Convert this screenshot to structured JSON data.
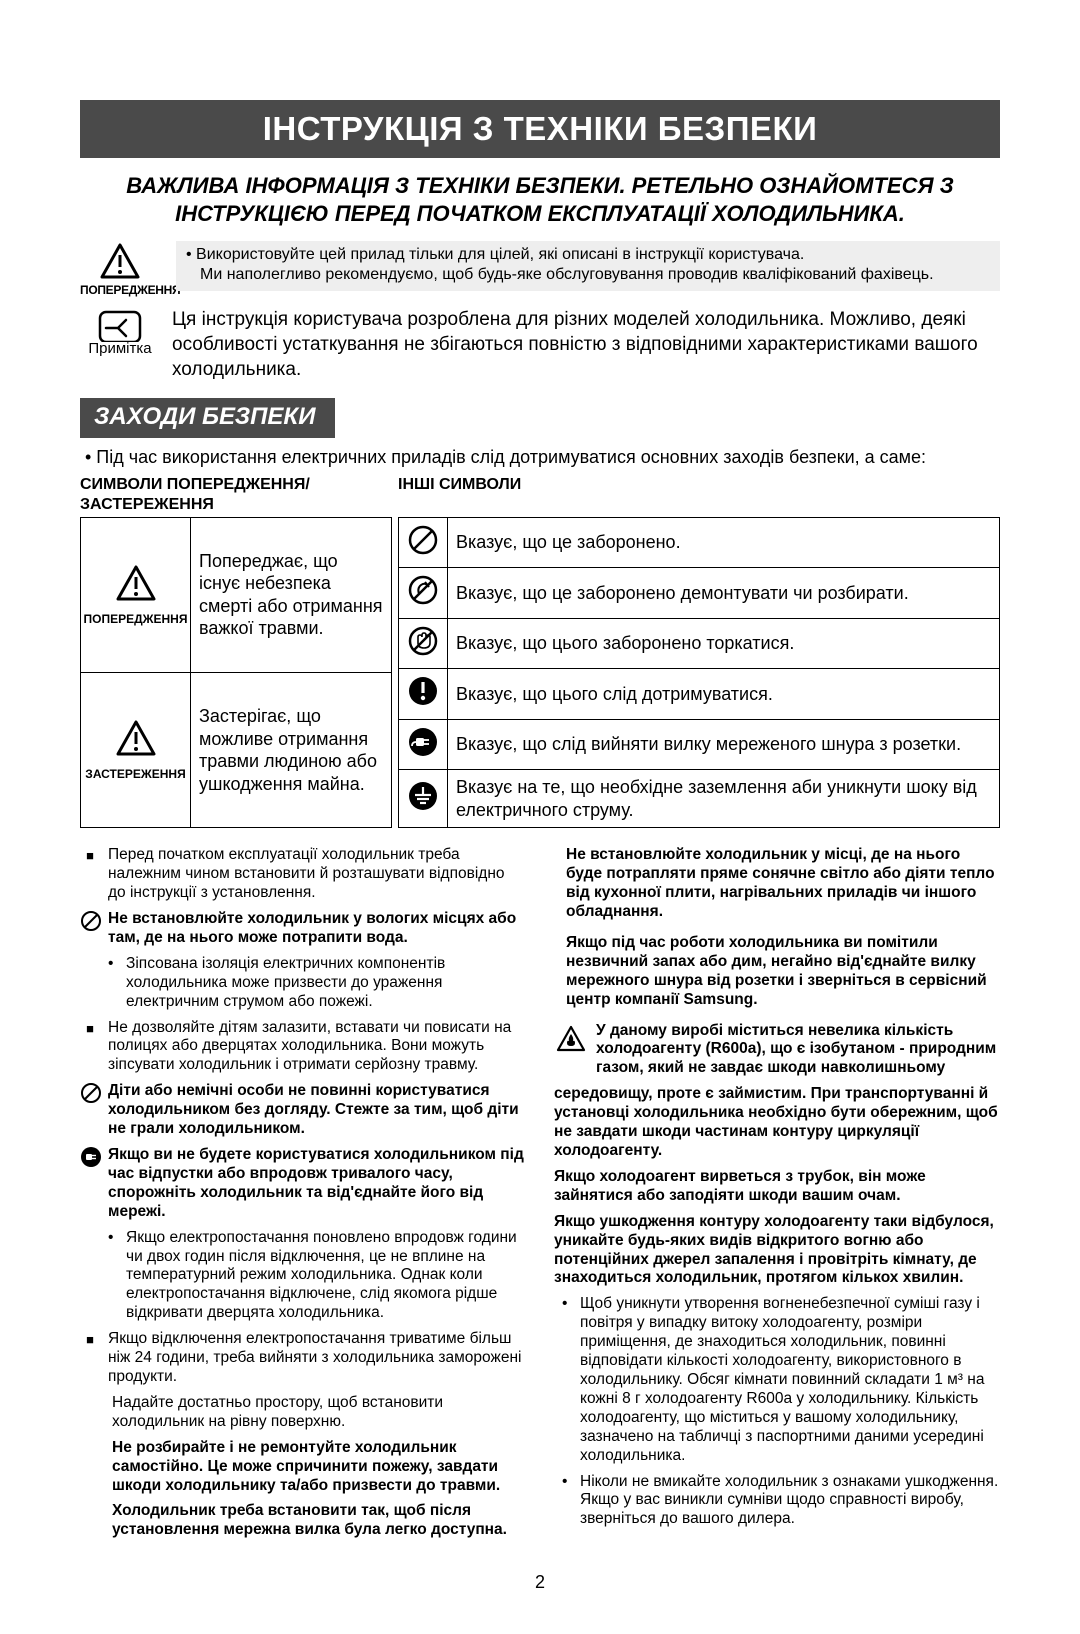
{
  "title": "ІНСТРУКЦІЯ З ТЕХНІКИ БЕЗПЕКИ",
  "subtitle": "ВАЖЛИВА ІНФОРМАЦІЯ З ТЕХНІКИ БЕЗПЕКИ. РЕТЕЛЬНО ОЗНАЙОМТЕСЯ З ІНСТРУКЦІЄЮ ПЕРЕД ПОЧАТКОМ ЕКСПЛУАТАЦІЇ ХОЛОДИЛЬНИКА.",
  "warn_label": "ПОПЕРЕДЖЕННЯ",
  "warn_line1": "• Використовуйте цей прилад тільки для цілей, які описані в інструкції користувача.",
  "warn_line2": "Ми наполегливо рекомендуємо, щоб будь-яке обслуговування проводив кваліфікований фахівець.",
  "note_label": "Примітка",
  "note_text": "Ця інструкція користувача розроблена для різних моделей холодильника. Можливо, деякі особливості устаткування не збігаються повністю з відповідними характеристиками вашого холодильника.",
  "section": "ЗАХОДИ БЕЗПЕКИ",
  "lead": "• Під час використання електричних приладів слід дотримуватися основних заходів безпеки, а саме:",
  "hdr_left": "СИМВОЛИ ПОПЕРЕДЖЕННЯ/ЗАСТЕРЕЖЕННЯ",
  "hdr_right": "ІНШІ СИМВОЛИ",
  "left_rows": [
    {
      "label": "ПОПЕРЕДЖЕННЯ",
      "text": "Попереджає, що існує небезпека смерті або отримання важкої травми."
    },
    {
      "label": "ЗАСТЕРЕЖЕННЯ",
      "text": "Застерігає, що можливе отримання травми людиною або ушкодження майна."
    }
  ],
  "right_rows": [
    "Вказує, що це заборонено.",
    "Вказує, що це заборонено демонтувати чи розбирати.",
    "Вказує, що цього заборонено торкатися.",
    "Вказує, що цього слід дотримуватися.",
    "Вказує, що слід вийняти вилку мереженого шнура з розетки.",
    "Вказує на те, що необхідне заземлення аби уникнути шоку від електричного струму."
  ],
  "col1": [
    {
      "mk": "sq",
      "bold": false,
      "text": "Перед початком експлуатації холодильник треба належним чином встановити й розташувати відповідно до інструкції з установлення."
    },
    {
      "mk": "circ",
      "bold": true,
      "text": "Не встановлюйте холодильник у вологих місцях або там, де на нього може потрапити вода."
    },
    {
      "mk": "sub",
      "text": "Зіпсована ізоляція електричних компонентів холодильника може призвести до ураження електричним струмом або пожежі."
    },
    {
      "mk": "sq",
      "bold": false,
      "text": "Не дозволяйте дітям залазити, вставати чи повисати на полицях або дверцятах холодильника. Вони можуть зіпсувати холодильник і отримати серйозну травму."
    },
    {
      "mk": "circ",
      "bold": true,
      "text": "Діти або немічні особи не повинні користуватися холодильником без догляду. Стежте за тим, щоб діти не грали холодильником."
    },
    {
      "mk": "plug",
      "bold": true,
      "text": "Якщо ви не будете користуватися холодильником під час відпустки або впродовж тривалого часу, спорожніть холодильник та від'єднайте його від мережі."
    },
    {
      "mk": "sub",
      "text": "Якщо електропостачання поновлено впродовж години чи двох годин після відключення, це не вплине на температурний режим холодильника. Однак коли електропостачання відключене, слід якомога рідше відкривати дверцята холодильника."
    },
    {
      "mk": "sq",
      "bold": false,
      "text": "Якщо відключення електропостачання триватиме більш ніж 24 години, треба вийняти з холодильника заморожені продукти."
    },
    {
      "mk": "none",
      "bold": false,
      "text": "Надайте достатньо простору, щоб встановити холодильник на рівну поверхню."
    },
    {
      "mk": "none",
      "bold": true,
      "text": "Не розбирайте і не ремонтуйте холодильник самостійно. Це може спричинити пожежу, завдати шкоди холодильнику та/або призвести до травми."
    },
    {
      "mk": "none",
      "bold": true,
      "text": "Холодильник треба встановити так, щоб після установлення мережна вилка була легко доступна."
    }
  ],
  "col2_top": [
    {
      "bold": true,
      "text": "Не встановлюйте холодильник у місці, де на нього буде потрапляти пряме сонячне світло або діяти тепло від кухонної плити, нагрівальних приладів чи іншого обладнання."
    },
    {
      "bold": true,
      "text": "Якщо під час роботи холодильника ви помітили незвичний запах або дим, негайно від'єднайте вилку мережного шнура від розетки і зверніться в сервісний центр компанії Samsung."
    }
  ],
  "flame_lead": "У даному виробі міститься невелика кількість холодоагенту (R600a), що є ізобутаном - природним газом, який не завдає шкоди навколишньому",
  "flame_cont": "середовищу, проте є займистим. При транспортуванні й установці холодильника необхідно бути обережним, щоб не завдати шкоди частинам контуру циркуляції холодоагенту.",
  "col2_bold": [
    "Якщо холодоагент вирветься з трубок, він може зайнятися або заподіяти шкоди вашим очам.",
    "Якщо ушкодження контуру холодоагенту таки відбулося, уникайте будь-яких видів відкритого вогню або потенційних джерел запалення і провітріть кімнату, де знаходиться холодильник, протягом кількох хвилин."
  ],
  "col2_bullets": [
    "Щоб уникнути утворення вогненебезпечної суміші газу і повітря у випадку витоку холодоагенту, розміри приміщення, де знаходиться холодильник, повинні відповідати кількості холодоагенту, використовного в холодильнику. Обсяг кімнати повинний складати 1 м³ на кожні 8 г холодоагенту R600a у холодильнику. Кількість холодоагенту, що міститься у вашому холодильнику, зазначено на табличці з паспортними даними усередині холодильника.",
    "Ніколи не вмикайте холодильник з ознаками ушкодження. Якщо у вас виникли сумніви щодо справності виробу, зверніться до вашого дилера."
  ],
  "pagenum": "2",
  "colors": {
    "bar": "#4a4a4a",
    "gray": "#eeeeee",
    "text": "#000000"
  }
}
